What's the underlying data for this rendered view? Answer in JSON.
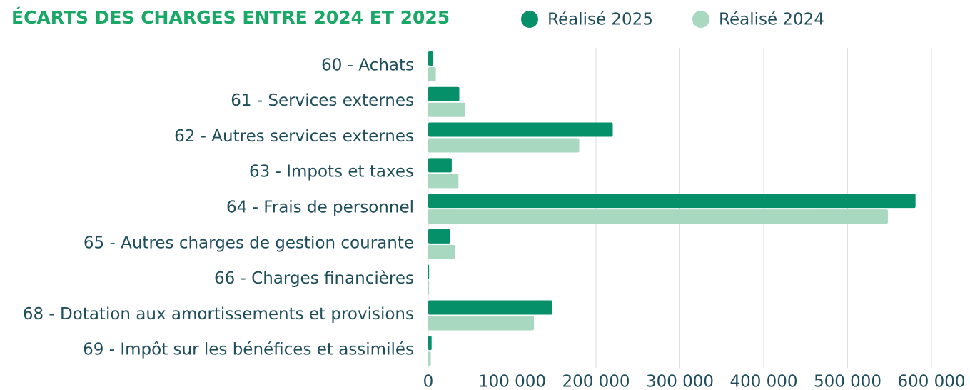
{
  "chart_data": {
    "type": "hbar",
    "title": "ÉCARTS DES CHARGES ENTRE 2024 ET 2025",
    "categories": [
      "60 - Achats",
      "61 - Services externes",
      "62 - Autres services externes",
      "63 - Impots et taxes",
      "64 - Frais de personnel",
      "65 - Autres charges de gestion courante",
      "66 - Charges financières",
      "68 - Dotation aux amortissements et provisions",
      "69 - Impôt sur les bénéfices et assimilés"
    ],
    "series": [
      {
        "name": "Réalisé 2025",
        "color": "#05906a",
        "values": [
          6000,
          37000,
          220000,
          28000,
          581000,
          26000,
          1000,
          148000,
          4000
        ]
      },
      {
        "name": "Réalisé 2024",
        "color": "#a8d8c0",
        "values": [
          9000,
          44000,
          180000,
          36000,
          548000,
          32000,
          1000,
          126000,
          3000
        ]
      }
    ],
    "xlim": [
      0,
      600000
    ],
    "xticks": [
      0,
      {
        "value": 100000,
        "label": "100 000"
      },
      {
        "value": 200000,
        "label": "200 000"
      },
      {
        "value": 300000,
        "label": "300 000"
      },
      {
        "value": 400000,
        "label": "400 000"
      },
      {
        "value": 500000,
        "label": "500 000"
      },
      {
        "value": 600000,
        "label": "600 000"
      }
    ],
    "grid": true
  }
}
